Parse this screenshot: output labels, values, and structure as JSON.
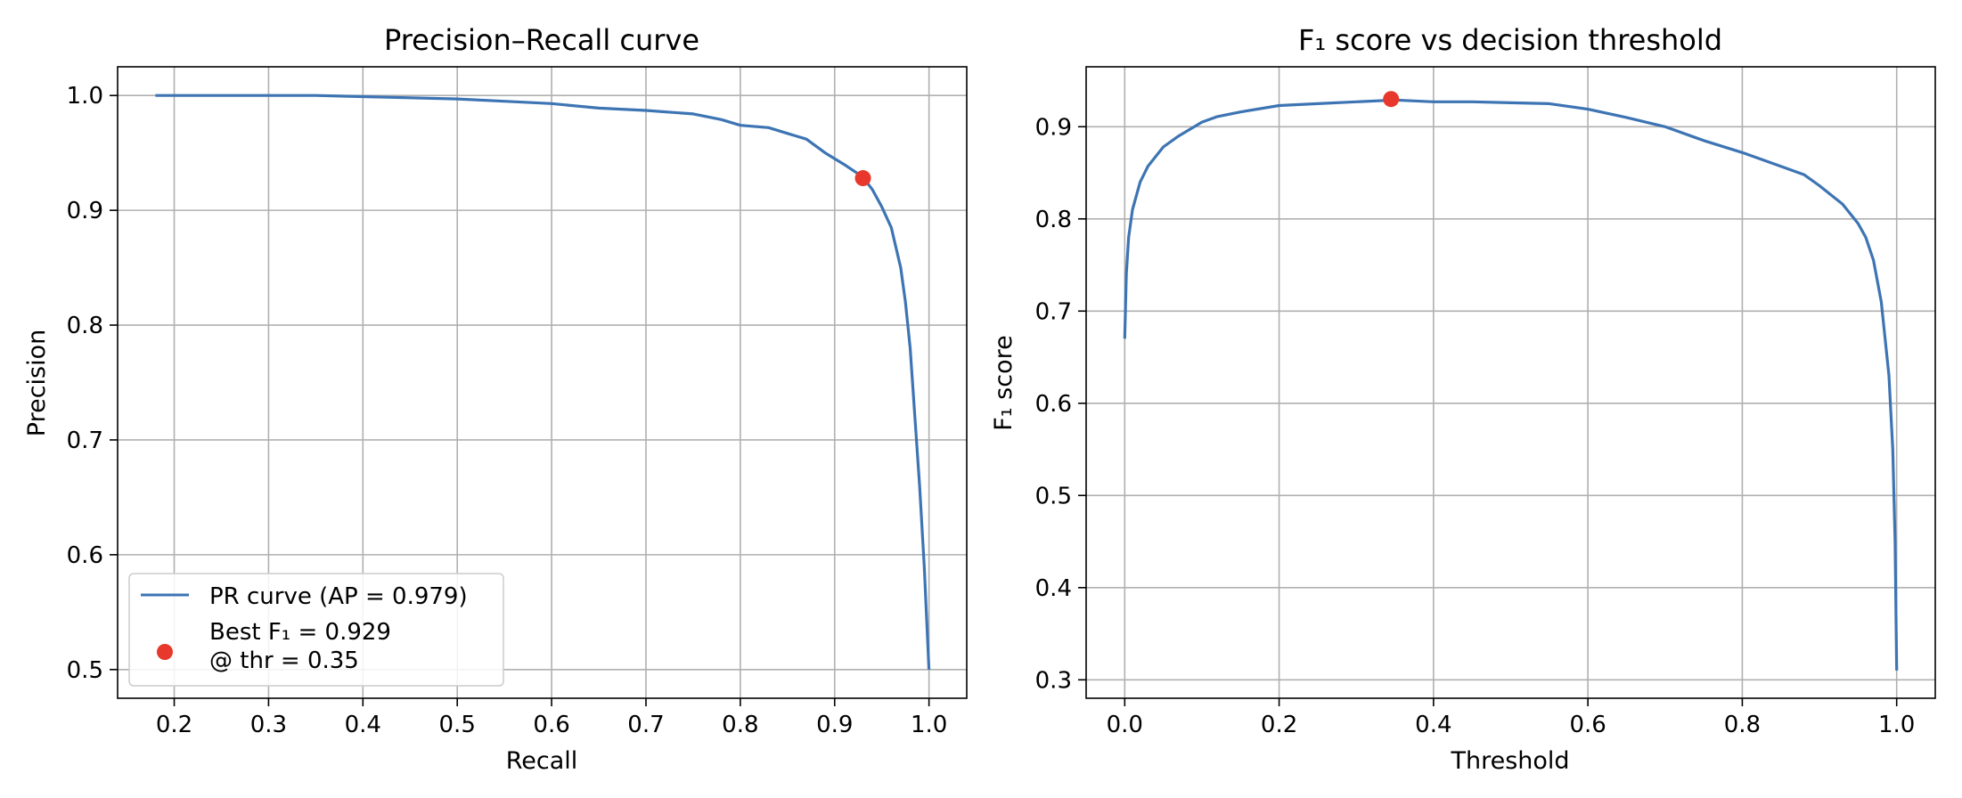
{
  "chart_data": [
    {
      "type": "line",
      "title": "Precision–Recall curve",
      "xlabel": "Recall",
      "ylabel": "Precision",
      "xlim": [
        0.14,
        1.04
      ],
      "ylim": [
        0.475,
        1.025
      ],
      "x_ticks": [
        "0.2",
        "0.3",
        "0.4",
        "0.5",
        "0.6",
        "0.7",
        "0.8",
        "0.9",
        "1.0"
      ],
      "y_ticks": [
        "0.5",
        "0.6",
        "0.7",
        "0.8",
        "0.9",
        "1.0"
      ],
      "grid": true,
      "legend_position": "lower-left",
      "series": [
        {
          "name": "PR curve  (AP = 0.979)",
          "color": "#3d74b3",
          "x": [
            0.18,
            0.25,
            0.3,
            0.35,
            0.4,
            0.45,
            0.5,
            0.55,
            0.6,
            0.65,
            0.7,
            0.75,
            0.78,
            0.8,
            0.83,
            0.85,
            0.87,
            0.89,
            0.91,
            0.93,
            0.94,
            0.95,
            0.96,
            0.97,
            0.975,
            0.98,
            0.985,
            0.99,
            0.995,
            1.0
          ],
          "y": [
            1.0,
            1.0,
            1.0,
            1.0,
            0.999,
            0.998,
            0.997,
            0.995,
            0.993,
            0.989,
            0.987,
            0.984,
            0.979,
            0.974,
            0.972,
            0.967,
            0.962,
            0.95,
            0.94,
            0.929,
            0.918,
            0.903,
            0.885,
            0.85,
            0.82,
            0.78,
            0.72,
            0.66,
            0.59,
            0.5
          ]
        },
        {
          "name": "Best F₁ = 0.929\n@ thr = 0.35",
          "label_lines": [
            "Best F₁ = 0.929",
            "@ thr = 0.35"
          ],
          "color": "#e8382b",
          "x": [
            0.93
          ],
          "y": [
            0.928
          ]
        }
      ]
    },
    {
      "type": "line",
      "title": "F₁ score vs decision threshold",
      "xlabel": "Threshold",
      "ylabel": "F₁ score",
      "xlim": [
        -0.05,
        1.05
      ],
      "ylim": [
        0.28,
        0.965
      ],
      "x_ticks": [
        "0.0",
        "0.2",
        "0.4",
        "0.6",
        "0.8",
        "1.0"
      ],
      "y_ticks": [
        "0.3",
        "0.4",
        "0.5",
        "0.6",
        "0.7",
        "0.8",
        "0.9"
      ],
      "grid": true,
      "series": [
        {
          "color": "#3d74b3",
          "x": [
            0.0,
            0.002,
            0.005,
            0.01,
            0.02,
            0.03,
            0.05,
            0.07,
            0.1,
            0.12,
            0.15,
            0.2,
            0.25,
            0.3,
            0.35,
            0.4,
            0.45,
            0.5,
            0.55,
            0.6,
            0.65,
            0.7,
            0.75,
            0.8,
            0.85,
            0.88,
            0.9,
            0.93,
            0.95,
            0.96,
            0.97,
            0.98,
            0.99,
            0.995,
            0.998,
            1.0
          ],
          "y": [
            0.67,
            0.74,
            0.78,
            0.81,
            0.84,
            0.857,
            0.878,
            0.89,
            0.905,
            0.911,
            0.916,
            0.923,
            0.925,
            0.927,
            0.929,
            0.927,
            0.927,
            0.926,
            0.925,
            0.919,
            0.91,
            0.9,
            0.885,
            0.872,
            0.857,
            0.848,
            0.836,
            0.816,
            0.795,
            0.78,
            0.755,
            0.71,
            0.63,
            0.55,
            0.45,
            0.31
          ]
        },
        {
          "color": "#e8382b",
          "x": [
            0.345
          ],
          "y": [
            0.93
          ]
        }
      ]
    }
  ]
}
